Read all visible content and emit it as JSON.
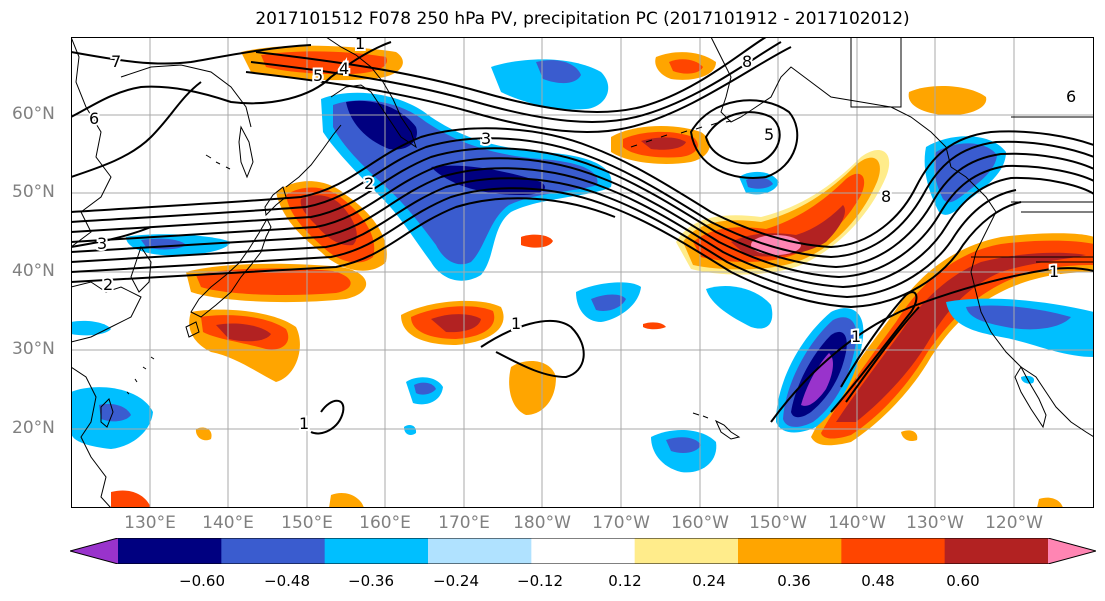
{
  "title": "2017101512 F078 250 hPa PV, precipitation PC (2017101912 - 2017102012)",
  "latitude_labels": [
    "60°N",
    "50°N",
    "40°N",
    "30°N",
    "20°N"
  ],
  "longitude_labels": [
    "130°E",
    "140°E",
    "150°E",
    "160°E",
    "170°E",
    "180°W",
    "170°W",
    "160°W",
    "150°W",
    "140°W",
    "130°W",
    "120°W"
  ],
  "colorbar": {
    "colors": [
      "#9933cc",
      "#000080",
      "#3a5ccf",
      "#00bfff",
      "#b0e2ff",
      "#ffffff",
      "#ffec8b",
      "#ffa500",
      "#ff4500",
      "#b22222",
      "#ff85b3"
    ],
    "tick_labels": [
      "−0.60",
      "−0.48",
      "−0.36",
      "−0.24",
      "−0.12",
      "0.12",
      "0.24",
      "0.36",
      "0.48",
      "0.60"
    ]
  },
  "pv_contour_labels": [
    "7",
    "6",
    "5",
    "4",
    "3",
    "2",
    "1",
    "8",
    "5",
    "8",
    "6",
    "3",
    "2",
    "1",
    "1",
    "1",
    "1"
  ],
  "colors": {
    "grid": "#a9a9a9",
    "coast": "#000000",
    "contour": "#000000"
  }
}
